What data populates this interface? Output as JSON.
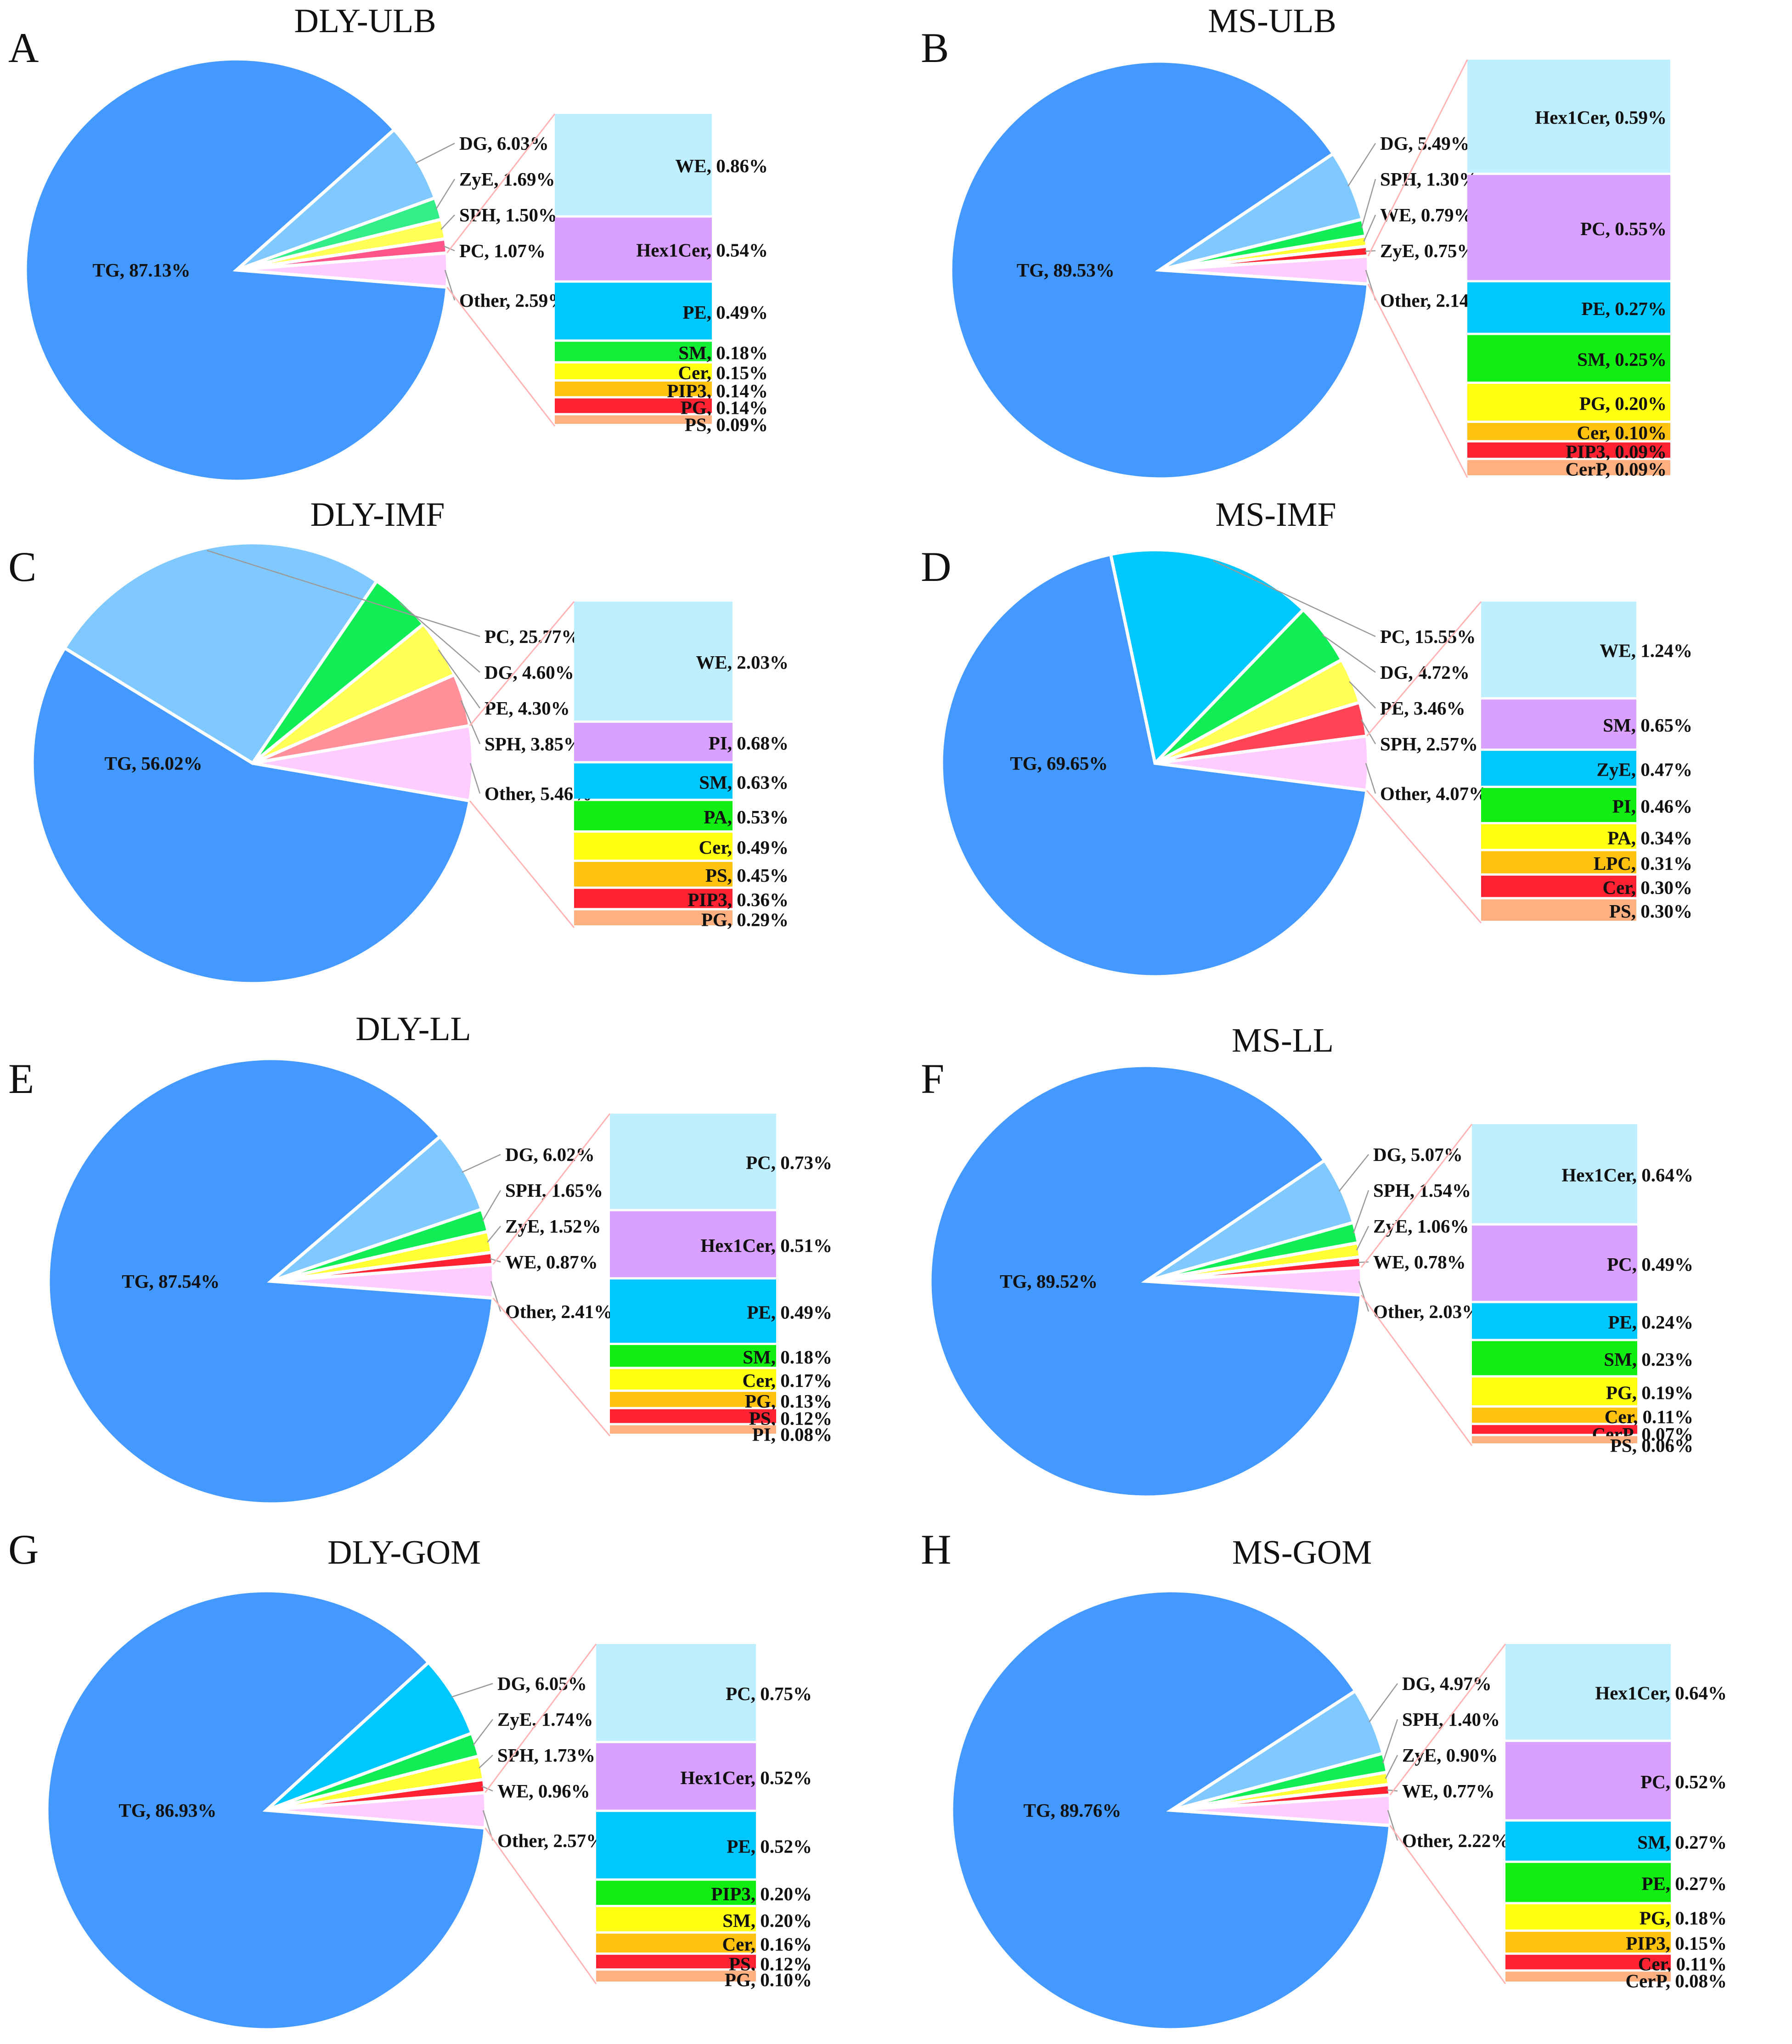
{
  "chart_data": [
    {
      "type": "pie",
      "panel": "A",
      "title": "DLY-ULB",
      "slices": [
        {
          "label": "TG, 87.13%",
          "value": 87.13,
          "color": "#4499ff"
        },
        {
          "label": "DG, 6.03%",
          "value": 6.03,
          "color": "#7fc9ff"
        },
        {
          "label": "ZyE, 1.69%",
          "value": 1.69,
          "color": "#33ee88"
        },
        {
          "label": "SPH, 1.50%",
          "value": 1.5,
          "color": "#ffff55"
        },
        {
          "label": "PC, 1.07%",
          "value": 1.07,
          "color": "#ff5588"
        },
        {
          "label": "Other, 2.59%",
          "value": 2.59,
          "color": "#ffccff"
        }
      ],
      "breakdown_of": "Other, 2.59%",
      "breakdown": [
        {
          "label": "WE, 0.86%",
          "value": 0.86,
          "color": "#bfeeff"
        },
        {
          "label": "Hex1Cer, 0.54%",
          "value": 0.54,
          "color": "#d9a0ff"
        },
        {
          "label": "PE, 0.49%",
          "value": 0.49,
          "color": "#00c8ff"
        },
        {
          "label": "SM, 0.18%",
          "value": 0.18,
          "color": "#11ee33"
        },
        {
          "label": "Cer, 0.15%",
          "value": 0.15,
          "color": "#ffff11"
        },
        {
          "label": "PIP3, 0.14%",
          "value": 0.14,
          "color": "#ffc20e"
        },
        {
          "label": "PG, 0.14%",
          "value": 0.14,
          "color": "#ff2233"
        },
        {
          "label": "PS, 0.09%",
          "value": 0.09,
          "color": "#ffb080"
        }
      ]
    },
    {
      "type": "pie",
      "panel": "B",
      "title": "MS-ULB",
      "slices": [
        {
          "label": "TG, 89.53%",
          "value": 89.53,
          "color": "#4499ff"
        },
        {
          "label": "DG, 5.49%",
          "value": 5.49,
          "color": "#7fc9ff"
        },
        {
          "label": "SPH, 1.30%",
          "value": 1.3,
          "color": "#11ee55"
        },
        {
          "label": "WE, 0.79%",
          "value": 0.79,
          "color": "#ffff33"
        },
        {
          "label": "ZyE, 0.75%",
          "value": 0.75,
          "color": "#ff2233"
        },
        {
          "label": "Other, 2.14%",
          "value": 2.14,
          "color": "#ffccff"
        }
      ],
      "breakdown_of": "Other, 2.14%",
      "breakdown": [
        {
          "label": "Hex1Cer, 0.59%",
          "value": 0.59,
          "color": "#bfeeff"
        },
        {
          "label": "PC, 0.55%",
          "value": 0.55,
          "color": "#d9a0ff"
        },
        {
          "label": "PE, 0.27%",
          "value": 0.27,
          "color": "#00c8ff"
        },
        {
          "label": "SM, 0.25%",
          "value": 0.25,
          "color": "#11ee11"
        },
        {
          "label": "PG, 0.20%",
          "value": 0.2,
          "color": "#ffff11"
        },
        {
          "label": "Cer, 0.10%",
          "value": 0.1,
          "color": "#ffc20e"
        },
        {
          "label": "PIP3, 0.09%",
          "value": 0.09,
          "color": "#ff2233"
        },
        {
          "label": "CerP, 0.09%",
          "value": 0.09,
          "color": "#ffb080"
        }
      ]
    },
    {
      "type": "pie",
      "panel": "C",
      "title": "DLY-IMF",
      "slices": [
        {
          "label": "TG, 56.02%",
          "value": 56.02,
          "color": "#4499ff"
        },
        {
          "label": "PC, 25.77%",
          "value": 25.77,
          "color": "#7fc9ff"
        },
        {
          "label": "DG, 4.60%",
          "value": 4.6,
          "color": "#11ee55"
        },
        {
          "label": "PE, 4.30%",
          "value": 4.3,
          "color": "#ffff55"
        },
        {
          "label": "SPH, 3.85%",
          "value": 3.85,
          "color": "#ff8f99"
        },
        {
          "label": "Other, 5.46%",
          "value": 5.46,
          "color": "#ffccff"
        }
      ],
      "breakdown_of": "Other, 5.46%",
      "breakdown": [
        {
          "label": "WE, 2.03%",
          "value": 2.03,
          "color": "#bfeeff"
        },
        {
          "label": "PI, 0.68%",
          "value": 0.68,
          "color": "#d9a0ff"
        },
        {
          "label": "SM, 0.63%",
          "value": 0.63,
          "color": "#00c8ff"
        },
        {
          "label": "PA, 0.53%",
          "value": 0.53,
          "color": "#11ee11"
        },
        {
          "label": "Cer, 0.49%",
          "value": 0.49,
          "color": "#ffff11"
        },
        {
          "label": "PS, 0.45%",
          "value": 0.45,
          "color": "#ffc20e"
        },
        {
          "label": "PIP3, 0.36%",
          "value": 0.36,
          "color": "#ff2233"
        },
        {
          "label": "PG, 0.29%",
          "value": 0.29,
          "color": "#ffb080"
        }
      ]
    },
    {
      "type": "pie",
      "panel": "D",
      "title": "MS-IMF",
      "slices": [
        {
          "label": "TG, 69.65%",
          "value": 69.65,
          "color": "#4499ff"
        },
        {
          "label": "PC, 15.55%",
          "value": 15.55,
          "color": "#00c8ff"
        },
        {
          "label": "DG, 4.72%",
          "value": 4.72,
          "color": "#11ee55"
        },
        {
          "label": "PE, 3.46%",
          "value": 3.46,
          "color": "#ffff55"
        },
        {
          "label": "SPH, 2.57%",
          "value": 2.57,
          "color": "#ff4455"
        },
        {
          "label": "Other, 4.07%",
          "value": 4.07,
          "color": "#ffccff"
        }
      ],
      "breakdown_of": "Other, 4.07%",
      "breakdown": [
        {
          "label": "WE, 1.24%",
          "value": 1.24,
          "color": "#bfeeff"
        },
        {
          "label": "SM, 0.65%",
          "value": 0.65,
          "color": "#d9a0ff"
        },
        {
          "label": "ZyE, 0.47%",
          "value": 0.47,
          "color": "#00c8ff"
        },
        {
          "label": "PI, 0.46%",
          "value": 0.46,
          "color": "#11ee11"
        },
        {
          "label": "PA, 0.34%",
          "value": 0.34,
          "color": "#ffff11"
        },
        {
          "label": "LPC, 0.31%",
          "value": 0.31,
          "color": "#ffc20e"
        },
        {
          "label": "Cer, 0.30%",
          "value": 0.3,
          "color": "#ff2233"
        },
        {
          "label": "PS, 0.30%",
          "value": 0.3,
          "color": "#ffb080"
        }
      ]
    },
    {
      "type": "pie",
      "panel": "E",
      "title": "DLY-LL",
      "slices": [
        {
          "label": "TG, 87.54%",
          "value": 87.54,
          "color": "#4499ff"
        },
        {
          "label": "DG, 6.02%",
          "value": 6.02,
          "color": "#7fc9ff"
        },
        {
          "label": "SPH, 1.65%",
          "value": 1.65,
          "color": "#11ee55"
        },
        {
          "label": "ZyE, 1.52%",
          "value": 1.52,
          "color": "#ffff33"
        },
        {
          "label": "WE, 0.87%",
          "value": 0.87,
          "color": "#ff2233"
        },
        {
          "label": "Other, 2.41%",
          "value": 2.41,
          "color": "#ffccff"
        }
      ],
      "breakdown_of": "Other, 2.41%",
      "breakdown": [
        {
          "label": "PC, 0.73%",
          "value": 0.73,
          "color": "#bfeeff"
        },
        {
          "label": "Hex1Cer, 0.51%",
          "value": 0.51,
          "color": "#d9a0ff"
        },
        {
          "label": "PE, 0.49%",
          "value": 0.49,
          "color": "#00c8ff"
        },
        {
          "label": "SM, 0.18%",
          "value": 0.18,
          "color": "#11ee11"
        },
        {
          "label": "Cer, 0.17%",
          "value": 0.17,
          "color": "#ffff11"
        },
        {
          "label": "PG, 0.13%",
          "value": 0.13,
          "color": "#ffc20e"
        },
        {
          "label": "PS, 0.12%",
          "value": 0.12,
          "color": "#ff2233"
        },
        {
          "label": "PI, 0.08%",
          "value": 0.08,
          "color": "#ffb080"
        }
      ]
    },
    {
      "type": "pie",
      "panel": "F",
      "title": "MS-LL",
      "slices": [
        {
          "label": "TG, 89.52%",
          "value": 89.52,
          "color": "#4499ff"
        },
        {
          "label": "DG, 5.07%",
          "value": 5.07,
          "color": "#7fc9ff"
        },
        {
          "label": "SPH, 1.54%",
          "value": 1.54,
          "color": "#11ee55"
        },
        {
          "label": "ZyE, 1.06%",
          "value": 1.06,
          "color": "#ffff33"
        },
        {
          "label": "WE, 0.78%",
          "value": 0.78,
          "color": "#ff2233"
        },
        {
          "label": "Other, 2.03%",
          "value": 2.03,
          "color": "#ffccff"
        }
      ],
      "breakdown_of": "Other, 2.03%",
      "breakdown": [
        {
          "label": "Hex1Cer, 0.64%",
          "value": 0.64,
          "color": "#bfeeff"
        },
        {
          "label": "PC, 0.49%",
          "value": 0.49,
          "color": "#d9a0ff"
        },
        {
          "label": "PE, 0.24%",
          "value": 0.24,
          "color": "#00c8ff"
        },
        {
          "label": "SM, 0.23%",
          "value": 0.23,
          "color": "#11ee11"
        },
        {
          "label": "PG, 0.19%",
          "value": 0.19,
          "color": "#ffff11"
        },
        {
          "label": "Cer, 0.11%",
          "value": 0.11,
          "color": "#ffc20e"
        },
        {
          "label": "CerP, 0.07%",
          "value": 0.07,
          "color": "#ff2233"
        },
        {
          "label": "PS, 0.06%",
          "value": 0.06,
          "color": "#ffb080"
        }
      ]
    },
    {
      "type": "pie",
      "panel": "G",
      "title": "DLY-GOM",
      "slices": [
        {
          "label": "TG, 86.93%",
          "value": 86.93,
          "color": "#4499ff"
        },
        {
          "label": "DG, 6.05%",
          "value": 6.05,
          "color": "#00c8ff"
        },
        {
          "label": "ZyE, 1.74%",
          "value": 1.74,
          "color": "#11ee55"
        },
        {
          "label": "SPH, 1.73%",
          "value": 1.73,
          "color": "#ffff33"
        },
        {
          "label": "WE, 0.96%",
          "value": 0.96,
          "color": "#ff2233"
        },
        {
          "label": "Other, 2.57%",
          "value": 2.57,
          "color": "#ffccff"
        }
      ],
      "breakdown_of": "Other, 2.57%",
      "breakdown": [
        {
          "label": "PC, 0.75%",
          "value": 0.75,
          "color": "#bfeeff"
        },
        {
          "label": "Hex1Cer, 0.52%",
          "value": 0.52,
          "color": "#d9a0ff"
        },
        {
          "label": "PE, 0.52%",
          "value": 0.52,
          "color": "#00c8ff"
        },
        {
          "label": "PIP3, 0.20%",
          "value": 0.2,
          "color": "#11ee11"
        },
        {
          "label": "SM, 0.20%",
          "value": 0.2,
          "color": "#ffff11"
        },
        {
          "label": "Cer, 0.16%",
          "value": 0.16,
          "color": "#ffc20e"
        },
        {
          "label": "PS, 0.12%",
          "value": 0.12,
          "color": "#ff2233"
        },
        {
          "label": "PG, 0.10%",
          "value": 0.1,
          "color": "#ffb080"
        }
      ]
    },
    {
      "type": "pie",
      "panel": "H",
      "title": "MS-GOM",
      "slices": [
        {
          "label": "TG, 89.76%",
          "value": 89.76,
          "color": "#4499ff"
        },
        {
          "label": "DG, 4.97%",
          "value": 4.97,
          "color": "#7fc9ff"
        },
        {
          "label": "SPH, 1.40%",
          "value": 1.4,
          "color": "#11ee55"
        },
        {
          "label": "ZyE, 0.90%",
          "value": 0.9,
          "color": "#ffff33"
        },
        {
          "label": "WE, 0.77%",
          "value": 0.77,
          "color": "#ff2233"
        },
        {
          "label": "Other, 2.22%",
          "value": 2.22,
          "color": "#ffccff"
        }
      ],
      "breakdown_of": "Other, 2.22%",
      "breakdown": [
        {
          "label": "Hex1Cer, 0.64%",
          "value": 0.64,
          "color": "#bfeeff"
        },
        {
          "label": "PC, 0.52%",
          "value": 0.52,
          "color": "#d9a0ff"
        },
        {
          "label": "SM, 0.27%",
          "value": 0.27,
          "color": "#00c8ff"
        },
        {
          "label": "PE, 0.27%",
          "value": 0.27,
          "color": "#11ee11"
        },
        {
          "label": "PG, 0.18%",
          "value": 0.18,
          "color": "#ffff11"
        },
        {
          "label": "PIP3, 0.15%",
          "value": 0.15,
          "color": "#ffc20e"
        },
        {
          "label": "Cer, 0.11%",
          "value": 0.11,
          "color": "#ff2233"
        },
        {
          "label": "CerP, 0.08%",
          "value": 0.08,
          "color": "#ffb080"
        }
      ]
    }
  ]
}
